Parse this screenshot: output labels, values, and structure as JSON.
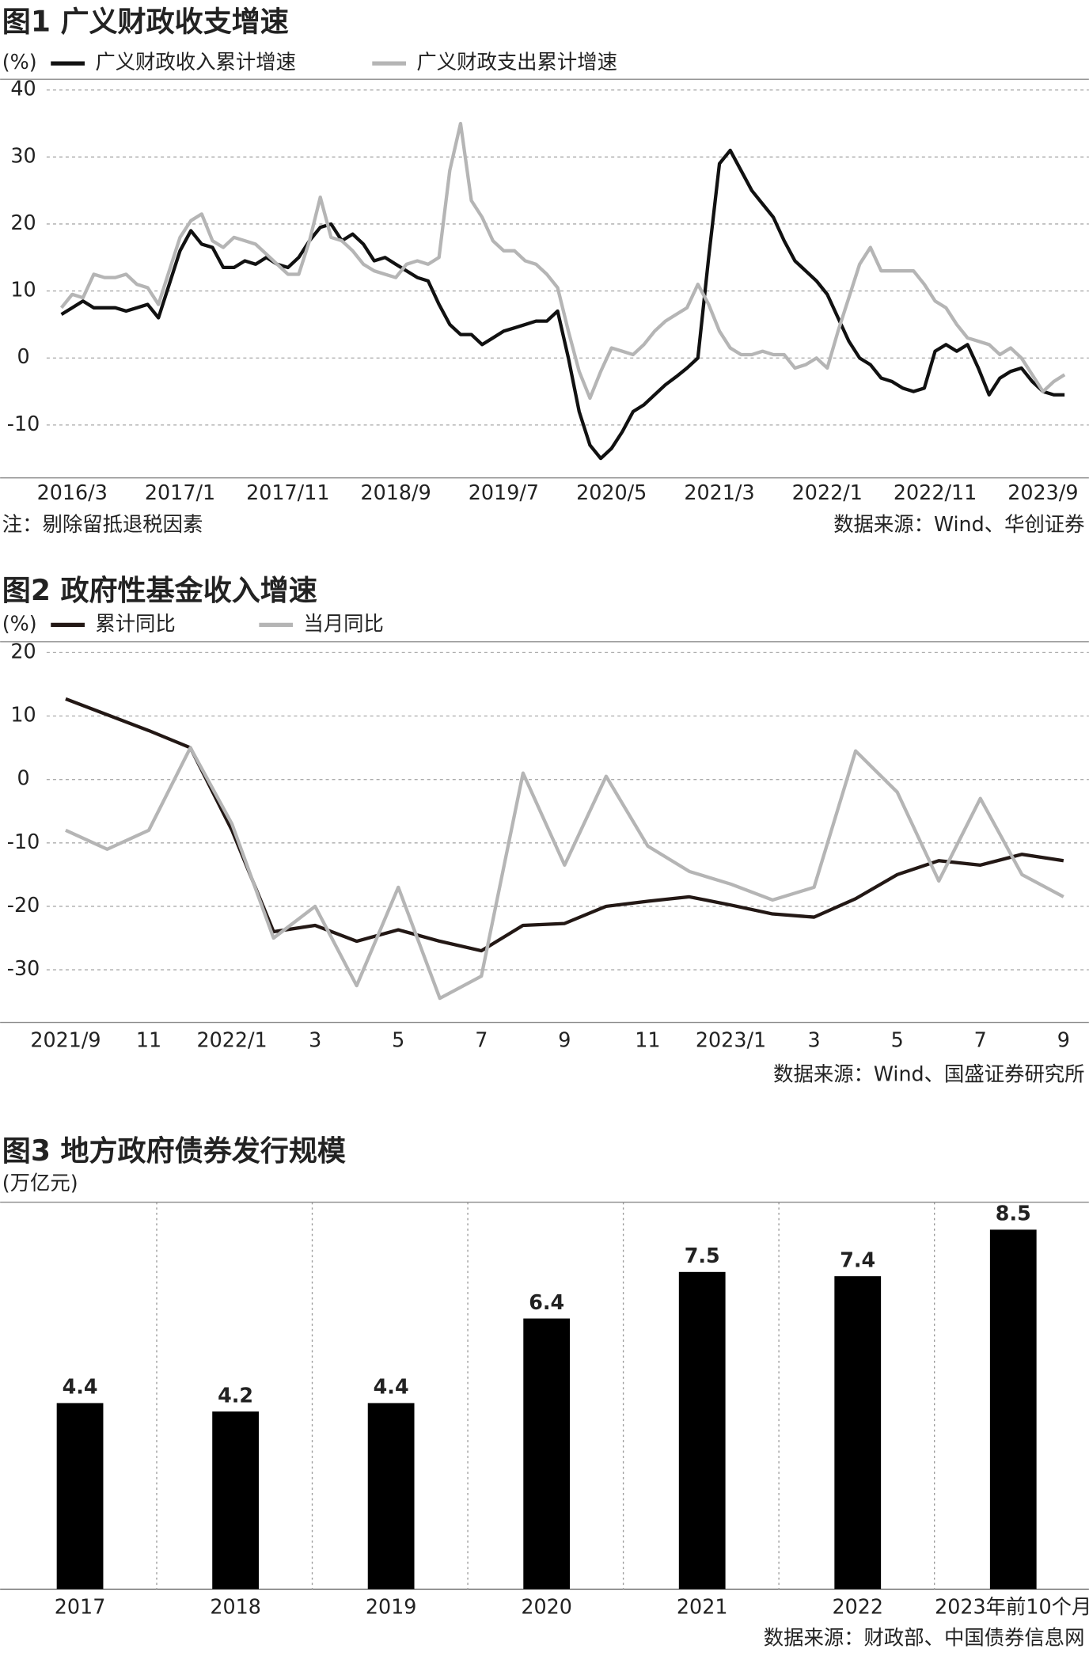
{
  "chart_data": [
    {
      "type": "line",
      "title": "图1 广义财政收支增速",
      "y_label": "(%)",
      "note": "注：剔除留抵退税因素",
      "source": "数据来源：Wind、华创证券",
      "categories": [
        null,
        "2016/3",
        null,
        null,
        null,
        null,
        null,
        null,
        null,
        null,
        null,
        "2017/1",
        null,
        null,
        null,
        null,
        null,
        null,
        null,
        null,
        null,
        "2017/11",
        null,
        null,
        null,
        null,
        null,
        null,
        null,
        null,
        null,
        "2018/9",
        null,
        null,
        null,
        null,
        null,
        null,
        null,
        null,
        null,
        "2019/7",
        null,
        null,
        null,
        null,
        null,
        null,
        null,
        null,
        null,
        "2020/5",
        null,
        null,
        null,
        null,
        null,
        null,
        null,
        null,
        null,
        "2021/3",
        null,
        null,
        null,
        null,
        null,
        null,
        null,
        null,
        null,
        "2022/1",
        null,
        null,
        null,
        null,
        null,
        null,
        null,
        null,
        null,
        "2022/11",
        null,
        null,
        null,
        null,
        null,
        null,
        null,
        null,
        null,
        "2023/9",
        null,
        null
      ],
      "series": [
        {
          "name": "广义财政收入累计增速",
          "color": "#111111",
          "values": [
            6.5,
            7.5,
            8.5,
            7.5,
            7.5,
            7.5,
            7,
            7.5,
            8,
            6,
            11,
            16,
            19,
            17,
            16.5,
            13.5,
            13.5,
            14.5,
            14,
            15,
            14,
            13.5,
            15,
            17.5,
            19.5,
            20,
            17.5,
            18.5,
            17,
            14.5,
            15,
            14,
            13,
            12,
            11.5,
            8,
            5,
            3.5,
            3.5,
            2,
            3,
            4,
            4.5,
            5,
            5.5,
            5.5,
            7,
            0,
            -8,
            -13,
            -15,
            -13.5,
            -11,
            -8,
            -7,
            -5.5,
            -4,
            -2.8,
            -1.5,
            0,
            15,
            29,
            31,
            28,
            25,
            23,
            21,
            17.5,
            14.5,
            13,
            11.5,
            9.5,
            6,
            2.5,
            0,
            -1,
            -3,
            -3.5,
            -4.5,
            -5,
            -4.5,
            1,
            2,
            1,
            2,
            -1.5,
            -5.5,
            -3,
            -2,
            -1.5,
            -3.5,
            -5,
            -5.5,
            -5.5
          ]
        },
        {
          "name": "广义财政支出累计增速",
          "color": "#b5b5b5",
          "values": [
            7.5,
            9.5,
            9,
            12.5,
            12,
            12,
            12.5,
            11,
            10.5,
            8,
            13,
            18,
            20.5,
            21.5,
            17.5,
            16.5,
            18,
            17.5,
            17,
            15.5,
            14,
            12.5,
            12.5,
            17.5,
            24,
            18,
            17.5,
            16,
            14,
            13,
            12.5,
            12,
            14,
            14.5,
            14,
            15,
            28,
            35,
            23.5,
            21,
            17.5,
            16,
            16,
            14.5,
            14,
            12.5,
            10.5,
            4,
            -2,
            -6,
            -2,
            1.5,
            1,
            0.5,
            2,
            4,
            5.5,
            6.5,
            7.5,
            11,
            8,
            4,
            1.5,
            0.5,
            0.5,
            1,
            0.5,
            0.5,
            -1.5,
            -1,
            0,
            -1.5,
            4,
            9,
            14,
            16.5,
            13,
            13,
            13,
            13,
            11,
            8.5,
            7.5,
            5,
            3,
            2.5,
            2,
            0.5,
            1.5,
            0,
            -2.5,
            -5,
            -3.5,
            -2.5
          ]
        }
      ],
      "ylim": [
        -17.9,
        41.6
      ],
      "yticks": [
        -10,
        0,
        10,
        20,
        30,
        40
      ],
      "grid": true
    },
    {
      "type": "line",
      "title": "图2  政府性基金收入增速",
      "y_label": "(%)",
      "source": "数据来源：Wind、国盛证券研究所",
      "categories": [
        "2021/9",
        null,
        "11",
        null,
        "2022/1",
        null,
        "3",
        null,
        "5",
        null,
        "7",
        null,
        "9",
        null,
        "11",
        null,
        "2023/1",
        null,
        "3",
        null,
        "5",
        null,
        "7",
        null,
        "9"
      ],
      "series": [
        {
          "name": "累计同比",
          "color": "#231815",
          "values": [
            12.7,
            10.2,
            7.7,
            5,
            -8,
            -24,
            -23,
            -25.5,
            -23.7,
            -25.5,
            -27,
            -23,
            -22.7,
            -20,
            -19.2,
            -18.5,
            -19.8,
            -21.2,
            -21.7,
            -18.8,
            -15,
            -12.8,
            -13.5,
            -11.8,
            -12.8
          ]
        },
        {
          "name": "当月同比",
          "color": "#b5b5b5",
          "values": [
            -8,
            -11,
            -8,
            5,
            -7,
            -25,
            -20,
            -32.5,
            -17,
            -34.5,
            -31,
            1,
            -13.5,
            0.5,
            -10.5,
            -14.5,
            -16.5,
            -19,
            -17,
            4.5,
            -2,
            -16,
            -3,
            -15,
            -18.5
          ]
        }
      ],
      "ylim": [
        -38.3,
        21.7
      ],
      "yticks": [
        -30,
        -20,
        -10,
        0,
        10,
        20
      ],
      "grid": true
    },
    {
      "type": "bar",
      "title": "图3 地方政府债券发行规模",
      "y_label": "(万亿元)",
      "source": "数据来源：财政部、中国债券信息网",
      "categories": [
        "2017",
        "2018",
        "2019",
        "2020",
        "2021",
        "2022",
        "2023年前10个月"
      ],
      "values": [
        4.4,
        4.2,
        4.4,
        6.4,
        7.5,
        7.4,
        8.5
      ],
      "color": "#000000",
      "ylim": [
        0,
        9.15
      ]
    }
  ]
}
